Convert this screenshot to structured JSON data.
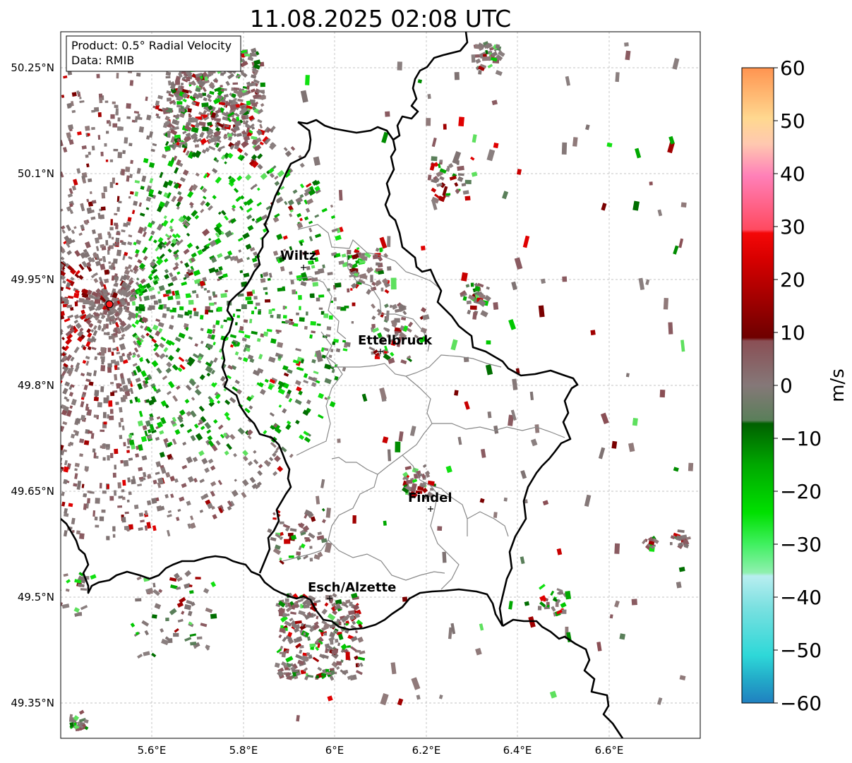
{
  "title": "11.08.2025 02:08 UTC",
  "info_box": {
    "product": "Product: 0.5° Radial Velocity",
    "data": "Data: RMIB"
  },
  "map": {
    "lon_range": [
      5.4,
      6.8
    ],
    "lat_range": [
      49.3,
      50.3
    ],
    "x_ticks": [
      "5.6°E",
      "5.8°E",
      "6°E",
      "6.2°E",
      "6.4°E",
      "6.6°E"
    ],
    "y_ticks": [
      "50.25°N",
      "50.1°N",
      "49.95°N",
      "49.8°N",
      "49.65°N",
      "49.5°N",
      "49.35°N"
    ],
    "gridlines": true,
    "radar_site": {
      "lon": 5.505,
      "lat": 49.915
    },
    "cities": [
      {
        "name": "Wiltz",
        "lon": 5.93,
        "lat": 49.965
      },
      {
        "name": "Ettelbruck",
        "lon": 6.1,
        "lat": 49.85
      },
      {
        "name": "Findel",
        "lon": 6.21,
        "lat": 49.626
      },
      {
        "name": "Esch/Alzette",
        "lon": 5.99,
        "lat": 49.498
      }
    ]
  },
  "colorbar": {
    "label": "m/s",
    "ticks": [
      "60",
      "50",
      "40",
      "30",
      "20",
      "10",
      "0",
      "−10",
      "−20",
      "−30",
      "−40",
      "−50",
      "−60"
    ],
    "range": [
      -60,
      60
    ]
  },
  "colors": {
    "zero_gray": "#857878",
    "inbound_green": "#008c00",
    "outbound_red": "#c80000",
    "border": "#000000",
    "canton_lines": "#888888"
  }
}
